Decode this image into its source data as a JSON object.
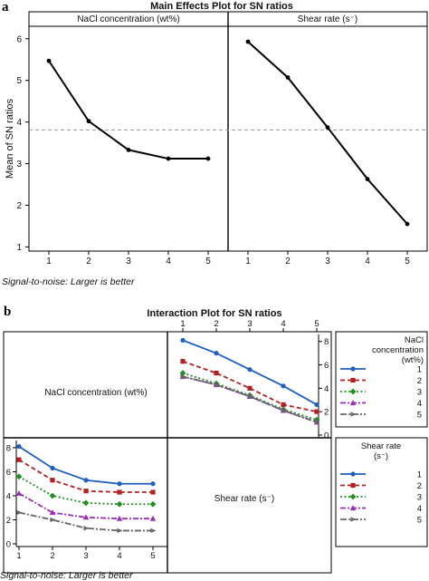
{
  "panel_a": {
    "letter": "a",
    "title": "Main Effects Plot for SN ratios",
    "ylabel": "Mean of SN ratios",
    "footnote": "Signal-to-noise: Larger is better"
  },
  "panel_b": {
    "letter": "b",
    "title": "Interaction Plot for SN ratios",
    "diag_nacl": "NaCl concentration (wt%)",
    "diag_shear": "Shear rate (s⁻)",
    "legend_nacl_title": "NaCl concentration (wt%)",
    "legend_shear_title": "Shear rate (s⁻)",
    "footnote": "Signal-to-noise: Larger is better"
  },
  "colors": {
    "level1": "#1f5fbf",
    "level2": "#b22222",
    "level3": "#1f8f1f",
    "level4": "#9a2fb8",
    "level5": "#666666",
    "main_line": "#000000",
    "mean_line": "#999999"
  },
  "chart_data": [
    {
      "type": "line",
      "title": "Main Effects Plot for SN ratios",
      "ylabel": "Mean of SN ratios",
      "panels": [
        {
          "name": "NaCl concentration (wt%)",
          "x": [
            1,
            2,
            3,
            4,
            5
          ],
          "y": [
            5.47,
            4.02,
            3.33,
            3.12,
            3.12
          ]
        },
        {
          "name": "Shear rate (s⁻)",
          "x": [
            1,
            2,
            3,
            4,
            5
          ],
          "y": [
            5.93,
            5.07,
            3.87,
            2.63,
            1.55
          ]
        }
      ],
      "ylim": [
        0.9,
        6.3
      ],
      "yticks": [
        1,
        2,
        3,
        4,
        5,
        6
      ],
      "xticks": [
        1,
        2,
        3,
        4,
        5
      ],
      "mean_line": 3.81,
      "grid": false
    },
    {
      "type": "line",
      "title": "Interaction Plot for SN ratios",
      "panels": [
        {
          "name": "NaCl concentration (wt%) by Shear rate",
          "legend": "Shear rate (s⁻)",
          "x": [
            1,
            2,
            3,
            4,
            5
          ],
          "ylim": [
            0,
            8.6
          ],
          "yticks": [
            0,
            2,
            4,
            6,
            8
          ],
          "series": [
            {
              "name": "1",
              "values": [
                8.1,
                6.3,
                5.3,
                5.0,
                5.0
              ]
            },
            {
              "name": "2",
              "values": [
                7.0,
                5.3,
                4.4,
                4.3,
                4.3
              ]
            },
            {
              "name": "3",
              "values": [
                5.6,
                4.0,
                3.4,
                3.3,
                3.3
              ]
            },
            {
              "name": "4",
              "values": [
                4.2,
                2.6,
                2.2,
                2.1,
                2.1
              ]
            },
            {
              "name": "5",
              "values": [
                2.6,
                2.0,
                1.3,
                1.1,
                1.1
              ]
            }
          ]
        },
        {
          "name": "Shear rate by NaCl concentration (wt%)",
          "legend": "NaCl concentration (wt%)",
          "x": [
            1,
            2,
            3,
            4,
            5
          ],
          "ylim": [
            0,
            8.6
          ],
          "yticks": [
            0,
            2,
            4,
            6,
            8
          ],
          "series": [
            {
              "name": "1",
              "values": [
                8.1,
                7.0,
                5.6,
                4.2,
                2.6
              ]
            },
            {
              "name": "2",
              "values": [
                6.3,
                5.3,
                4.0,
                2.6,
                2.0
              ]
            },
            {
              "name": "3",
              "values": [
                5.3,
                4.4,
                3.4,
                2.2,
                1.3
              ]
            },
            {
              "name": "4",
              "values": [
                5.0,
                4.3,
                3.3,
                2.1,
                1.1
              ]
            },
            {
              "name": "5",
              "values": [
                5.0,
                4.3,
                3.3,
                2.1,
                1.1
              ]
            }
          ]
        }
      ]
    }
  ]
}
